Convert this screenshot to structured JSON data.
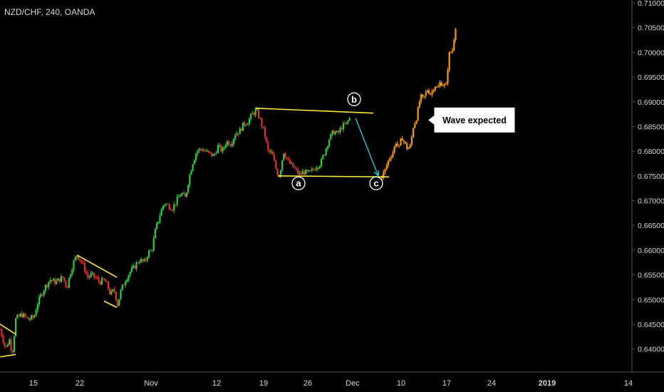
{
  "header": {
    "symbol": "NZD/CHF, 240, OANDA"
  },
  "colors": {
    "background": "#000000",
    "up": "#2ecc40",
    "down": "#e03030",
    "projection": "#f39c12",
    "trendline": "#ffeb3b",
    "arrow": "#26c6da",
    "axis_text": "#d8d8d8",
    "divider": "#555555"
  },
  "chart_data": {
    "type": "candlestick",
    "title": "NZD/CHF, 240, OANDA",
    "ylim": [
      0.6375,
      0.71
    ],
    "y_ticks": [
      "0.64000",
      "0.64500",
      "0.65000",
      "0.65500",
      "0.66000",
      "0.66500",
      "0.67000",
      "0.67500",
      "0.68000",
      "0.68500",
      "0.69000",
      "0.69500",
      "0.70000",
      "0.70500",
      "0.71000"
    ],
    "x_ticks": [
      "15",
      "22",
      "Nov",
      "12",
      "19",
      "26",
      "Dec",
      "10",
      "17",
      "24",
      "2019",
      "14"
    ],
    "x_tick_bold": [
      "2019"
    ],
    "price_path": [
      [
        0,
        0.644
      ],
      [
        3,
        0.6425
      ],
      [
        8,
        0.64
      ],
      [
        13,
        0.642
      ],
      [
        17,
        0.639
      ],
      [
        22,
        0.646
      ],
      [
        30,
        0.647
      ],
      [
        40,
        0.646
      ],
      [
        48,
        0.6465
      ],
      [
        52,
        0.649
      ],
      [
        58,
        0.651
      ],
      [
        63,
        0.6525
      ],
      [
        70,
        0.654
      ],
      [
        78,
        0.6535
      ],
      [
        88,
        0.6545
      ],
      [
        94,
        0.6525
      ],
      [
        98,
        0.655
      ],
      [
        103,
        0.6575
      ],
      [
        108,
        0.659
      ],
      [
        113,
        0.658
      ],
      [
        118,
        0.6565
      ],
      [
        123,
        0.6545
      ],
      [
        128,
        0.655
      ],
      [
        133,
        0.6545
      ],
      [
        140,
        0.6535
      ],
      [
        146,
        0.654
      ],
      [
        150,
        0.653
      ],
      [
        155,
        0.651
      ],
      [
        160,
        0.652
      ],
      [
        165,
        0.649
      ],
      [
        170,
        0.652
      ],
      [
        176,
        0.654
      ],
      [
        182,
        0.6555
      ],
      [
        188,
        0.6565
      ],
      [
        195,
        0.658
      ],
      [
        203,
        0.6575
      ],
      [
        208,
        0.6595
      ],
      [
        213,
        0.66
      ],
      [
        218,
        0.664
      ],
      [
        224,
        0.667
      ],
      [
        230,
        0.6695
      ],
      [
        236,
        0.669
      ],
      [
        242,
        0.6685
      ],
      [
        248,
        0.67
      ],
      [
        254,
        0.6715
      ],
      [
        260,
        0.6705
      ],
      [
        265,
        0.6745
      ],
      [
        270,
        0.6775
      ],
      [
        276,
        0.68
      ],
      [
        282,
        0.6805
      ],
      [
        288,
        0.68
      ],
      [
        294,
        0.6795
      ],
      [
        300,
        0.679
      ],
      [
        306,
        0.681
      ],
      [
        312,
        0.68
      ],
      [
        318,
        0.682
      ],
      [
        324,
        0.6815
      ],
      [
        330,
        0.6835
      ],
      [
        336,
        0.684
      ],
      [
        342,
        0.6855
      ],
      [
        348,
        0.686
      ],
      [
        354,
        0.6875
      ],
      [
        360,
        0.6882
      ],
      [
        366,
        0.686
      ],
      [
        372,
        0.683
      ],
      [
        376,
        0.68
      ],
      [
        382,
        0.6795
      ],
      [
        388,
        0.676
      ],
      [
        392,
        0.675
      ],
      [
        398,
        0.68
      ],
      [
        404,
        0.678
      ],
      [
        410,
        0.677
      ],
      [
        416,
        0.676
      ],
      [
        420,
        0.6752
      ],
      [
        426,
        0.6758
      ],
      [
        432,
        0.6755
      ],
      [
        438,
        0.676
      ],
      [
        444,
        0.677
      ],
      [
        450,
        0.6775
      ],
      [
        456,
        0.68
      ],
      [
        462,
        0.6825
      ],
      [
        468,
        0.684
      ],
      [
        474,
        0.6835
      ],
      [
        480,
        0.685
      ],
      [
        486,
        0.6855
      ],
      [
        492,
        0.687
      ]
    ],
    "projection_path": [
      [
        536,
        0.675
      ],
      [
        540,
        0.676
      ],
      [
        546,
        0.6785
      ],
      [
        552,
        0.68
      ],
      [
        556,
        0.682
      ],
      [
        560,
        0.6805
      ],
      [
        564,
        0.683
      ],
      [
        568,
        0.6815
      ],
      [
        572,
        0.6805
      ],
      [
        576,
        0.681
      ],
      [
        580,
        0.685
      ],
      [
        585,
        0.687
      ],
      [
        590,
        0.691
      ],
      [
        594,
        0.6905
      ],
      [
        600,
        0.6925
      ],
      [
        605,
        0.6915
      ],
      [
        610,
        0.6935
      ],
      [
        614,
        0.6925
      ],
      [
        618,
        0.694
      ],
      [
        622,
        0.6935
      ],
      [
        626,
        0.693
      ],
      [
        630,
        0.6995
      ],
      [
        635,
        0.7005
      ],
      [
        640,
        0.706
      ]
    ],
    "annotations": {
      "wave_labels": [
        {
          "label": "a",
          "x": 419,
          "price": 0.6735
        },
        {
          "label": "b",
          "x": 497,
          "price": 0.6905
        },
        {
          "label": "c",
          "x": 528,
          "price": 0.6735
        }
      ],
      "trendlines": [
        {
          "from": [
            0,
            0.645
          ],
          "to": [
            22,
            0.643
          ]
        },
        {
          "from": [
            0,
            0.6384
          ],
          "to": [
            22,
            0.6389
          ]
        },
        {
          "from": [
            108,
            0.659
          ],
          "to": [
            164,
            0.6545
          ]
        },
        {
          "from": [
            146,
            0.6497
          ],
          "to": [
            164,
            0.6484
          ]
        },
        {
          "from": [
            358,
            0.6887
          ],
          "to": [
            524,
            0.6877
          ]
        },
        {
          "from": [
            390,
            0.675
          ],
          "to": [
            546,
            0.6748
          ]
        }
      ],
      "arrow": {
        "from": [
          499,
          0.6867
        ],
        "to": [
          531,
          0.675
        ]
      },
      "callout": {
        "text": "Wave expected",
        "x": 672,
        "price": 0.6863
      }
    }
  }
}
